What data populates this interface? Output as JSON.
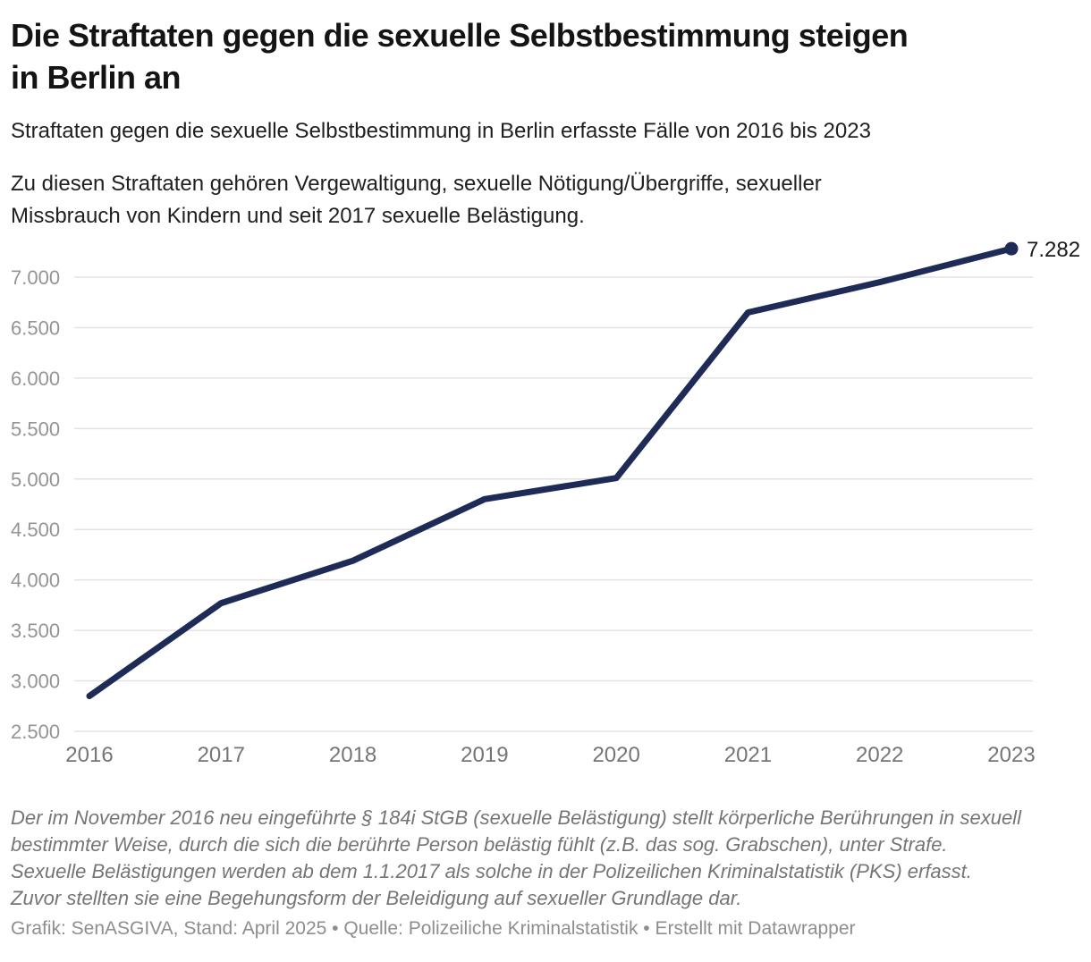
{
  "header": {
    "title": "Die Straftaten gegen die sexuelle Selbstbestimmung steigen in Berlin an",
    "title_lines": [
      "Die Straftaten gegen die sexuelle Selbstbestimmung steigen",
      "in Berlin an"
    ],
    "subtitle": "Straftaten gegen die sexuelle Selbstbestimmung in Berlin erfasste Fälle von 2016 bis 2023",
    "description_lines": [
      "Zu diesen Straftaten gehören Vergewaltigung, sexuelle Nötigung/Übergriffe, sexueller",
      "Missbrauch von Kindern und seit 2017 sexuelle Belästigung."
    ]
  },
  "chart_data": {
    "type": "line",
    "title": "Die Straftaten gegen die sexuelle Selbstbestimmung steigen in Berlin an",
    "series_name": "Erfasste Fälle",
    "x": [
      "2016",
      "2017",
      "2018",
      "2019",
      "2020",
      "2021",
      "2022",
      "2023"
    ],
    "values": [
      2850,
      3770,
      4190,
      4800,
      5010,
      6650,
      6950,
      7282
    ],
    "end_label": "7.282",
    "xlabel": "",
    "ylabel": "",
    "ylim": [
      2500,
      7000
    ],
    "grid": true,
    "legend": false,
    "y_ticks": [
      {
        "value": 7000,
        "label": "7.000"
      },
      {
        "value": 6500,
        "label": "6.500"
      },
      {
        "value": 6000,
        "label": "6.000"
      },
      {
        "value": 5500,
        "label": "5.500"
      },
      {
        "value": 5000,
        "label": "5.000"
      },
      {
        "value": 4500,
        "label": "4.500"
      },
      {
        "value": 4000,
        "label": "4.000"
      },
      {
        "value": 3500,
        "label": "3.500"
      },
      {
        "value": 3000,
        "label": "3.000"
      },
      {
        "value": 2500,
        "label": "2.500"
      }
    ],
    "line_color": "#1e2b57",
    "grid_color": "#e2e2e2",
    "y_tick_color": "#949494",
    "x_tick_color": "#757575",
    "end_label_color": "#1a1a1a"
  },
  "footer": {
    "footnote_lines": [
      "Der im November 2016 neu eingeführte § 184i StGB (sexuelle Belästigung) stellt körperliche Berührungen in sexuell",
      "bestimmter Weise, durch die sich die berührte Person belästig fühlt (z.B. das sog. Grabschen), unter Strafe.",
      "Sexuelle Belästigungen werden ab dem 1.1.2017 als solche in der Polizeilichen Kriminalstatistik (PKS) erfasst.",
      "Zuvor stellten sie eine Begehungsform der Beleidigung auf sexueller Grundlage dar."
    ],
    "source": "Grafik: SenASGIVA, Stand: April 2025 • Quelle: Polizeiliche Kriminalstatistik • Erstellt mit Datawrapper"
  }
}
